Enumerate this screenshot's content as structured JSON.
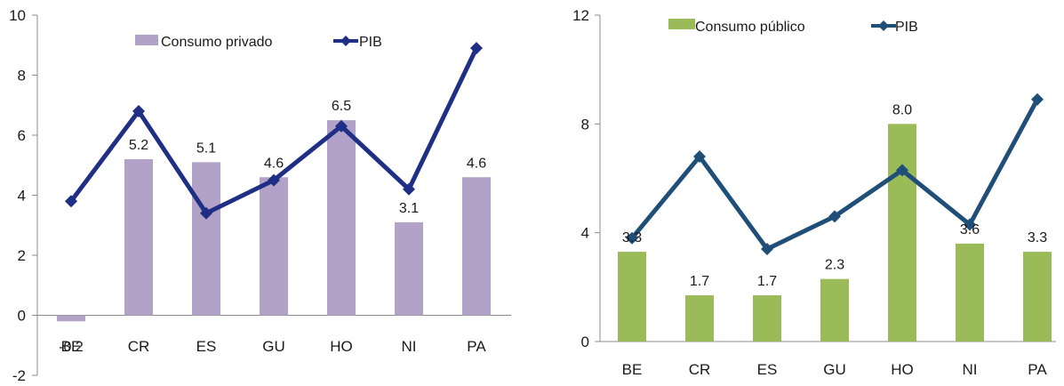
{
  "chart_data": [
    {
      "type": "bar",
      "categories": [
        "BE",
        "CR",
        "ES",
        "GU",
        "HO",
        "NI",
        "PA"
      ],
      "series": [
        {
          "name": "Consumo privado",
          "kind": "bar",
          "values": [
            -0.2,
            5.2,
            5.1,
            4.6,
            6.5,
            3.1,
            4.6
          ],
          "labels": [
            "-0.2",
            "5.2",
            "5.1",
            "4.6",
            "6.5",
            "3.1",
            "4.6"
          ],
          "color": "#b3a2c7"
        },
        {
          "name": "PIB",
          "kind": "line",
          "values": [
            3.8,
            6.8,
            3.4,
            4.5,
            6.3,
            4.2,
            8.9
          ],
          "color": "#1f2f86"
        }
      ],
      "ylim": [
        -2,
        10
      ],
      "yticks": [
        "10",
        "8",
        "6",
        "4",
        "2",
        "0",
        "-2"
      ],
      "ytick_values": [
        10,
        8,
        6,
        4,
        2,
        0,
        -2
      ],
      "grid": false,
      "legend": "top"
    },
    {
      "type": "bar",
      "categories": [
        "BE",
        "CR",
        "ES",
        "GU",
        "HO",
        "NI",
        "PA"
      ],
      "series": [
        {
          "name": "Consumo público",
          "kind": "bar",
          "values": [
            3.3,
            1.7,
            1.7,
            2.3,
            8.0,
            3.6,
            3.3
          ],
          "labels": [
            "3.3",
            "1.7",
            "1.7",
            "2.3",
            "8.0",
            "3.6",
            "3.3"
          ],
          "color": "#9bbb59"
        },
        {
          "name": "PIB",
          "kind": "line",
          "values": [
            3.8,
            6.8,
            3.4,
            4.6,
            6.3,
            4.3,
            8.9
          ],
          "color": "#1f4e79"
        }
      ],
      "ylim": [
        0,
        12
      ],
      "yticks": [
        "12",
        "8",
        "4",
        "0"
      ],
      "ytick_values": [
        12,
        8,
        4,
        0
      ],
      "grid": false,
      "legend": "top"
    }
  ]
}
